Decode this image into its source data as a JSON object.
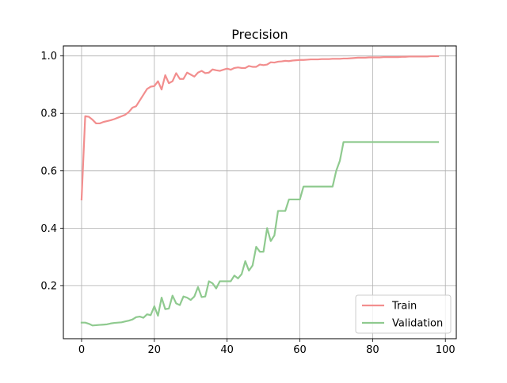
{
  "chart_data": {
    "type": "line",
    "title": "Precision",
    "xlabel": "",
    "ylabel": "",
    "xlim": [
      -5,
      103
    ],
    "ylim": [
      0.015,
      1.035
    ],
    "x_ticks": [
      0,
      20,
      40,
      60,
      80,
      100
    ],
    "y_ticks": [
      0.2,
      0.4,
      0.6,
      0.8,
      1.0
    ],
    "x_tick_labels": [
      "0",
      "20",
      "40",
      "60",
      "80",
      "100"
    ],
    "y_tick_labels": [
      "0.2",
      "0.4",
      "0.6",
      "0.8",
      "1.0"
    ],
    "grid": true,
    "legend_position": "lower-right",
    "series": [
      {
        "name": "Train",
        "color": "#f28e8e",
        "x": [
          0,
          1,
          2,
          3,
          4,
          5,
          6,
          7,
          8,
          9,
          10,
          11,
          12,
          13,
          14,
          15,
          16,
          17,
          18,
          19,
          20,
          21,
          22,
          23,
          24,
          25,
          26,
          27,
          28,
          29,
          30,
          31,
          32,
          33,
          34,
          35,
          36,
          37,
          38,
          39,
          40,
          41,
          42,
          43,
          44,
          45,
          46,
          47,
          48,
          49,
          50,
          51,
          52,
          53,
          54,
          55,
          56,
          57,
          58,
          59,
          60,
          61,
          62,
          63,
          64,
          65,
          66,
          67,
          68,
          69,
          70,
          71,
          72,
          73,
          74,
          75,
          76,
          77,
          78,
          79,
          80,
          81,
          82,
          83,
          84,
          85,
          86,
          87,
          88,
          89,
          90,
          91,
          92,
          93,
          94,
          95,
          96,
          97,
          98
        ],
        "values": [
          0.5,
          0.79,
          0.788,
          0.778,
          0.765,
          0.765,
          0.77,
          0.773,
          0.776,
          0.78,
          0.785,
          0.79,
          0.795,
          0.805,
          0.82,
          0.825,
          0.845,
          0.865,
          0.885,
          0.893,
          0.895,
          0.912,
          0.883,
          0.933,
          0.905,
          0.912,
          0.94,
          0.92,
          0.92,
          0.942,
          0.935,
          0.928,
          0.942,
          0.948,
          0.94,
          0.942,
          0.953,
          0.95,
          0.948,
          0.952,
          0.956,
          0.952,
          0.958,
          0.96,
          0.958,
          0.958,
          0.965,
          0.962,
          0.962,
          0.97,
          0.968,
          0.97,
          0.978,
          0.977,
          0.98,
          0.981,
          0.983,
          0.982,
          0.984,
          0.985,
          0.986,
          0.986,
          0.987,
          0.988,
          0.988,
          0.988,
          0.989,
          0.989,
          0.989,
          0.99,
          0.99,
          0.99,
          0.991,
          0.991,
          0.992,
          0.993,
          0.994,
          0.994,
          0.994,
          0.995,
          0.995,
          0.995,
          0.995,
          0.996,
          0.996,
          0.996,
          0.996,
          0.996,
          0.997,
          0.997,
          0.998,
          0.998,
          0.998,
          0.998,
          0.998,
          0.998,
          0.999,
          0.999,
          0.999
        ]
      },
      {
        "name": "Validation",
        "color": "#8fca8f",
        "x": [
          0,
          1,
          2,
          3,
          4,
          5,
          6,
          7,
          8,
          9,
          10,
          11,
          12,
          13,
          14,
          15,
          16,
          17,
          18,
          19,
          20,
          21,
          22,
          23,
          24,
          25,
          26,
          27,
          28,
          29,
          30,
          31,
          32,
          33,
          34,
          35,
          36,
          37,
          38,
          39,
          40,
          41,
          42,
          43,
          44,
          45,
          46,
          47,
          48,
          49,
          50,
          51,
          52,
          53,
          54,
          55,
          56,
          57,
          58,
          59,
          60,
          61,
          62,
          63,
          64,
          65,
          66,
          67,
          68,
          69,
          70,
          71,
          72,
          73,
          74,
          75,
          76,
          77,
          78,
          79,
          80,
          81,
          82,
          83,
          84,
          85,
          86,
          87,
          88,
          89,
          90,
          91,
          92,
          93,
          94,
          95,
          96,
          97,
          98
        ],
        "values": [
          0.071,
          0.071,
          0.067,
          0.061,
          0.062,
          0.063,
          0.064,
          0.065,
          0.068,
          0.07,
          0.071,
          0.072,
          0.075,
          0.078,
          0.082,
          0.09,
          0.092,
          0.088,
          0.1,
          0.097,
          0.128,
          0.095,
          0.158,
          0.118,
          0.12,
          0.165,
          0.138,
          0.132,
          0.162,
          0.158,
          0.15,
          0.162,
          0.195,
          0.16,
          0.162,
          0.215,
          0.208,
          0.19,
          0.215,
          0.215,
          0.215,
          0.215,
          0.235,
          0.225,
          0.24,
          0.285,
          0.252,
          0.27,
          0.335,
          0.318,
          0.318,
          0.4,
          0.355,
          0.375,
          0.46,
          0.46,
          0.46,
          0.5,
          0.5,
          0.5,
          0.5,
          0.545,
          0.545,
          0.545,
          0.545,
          0.545,
          0.545,
          0.545,
          0.545,
          0.545,
          0.6,
          0.635,
          0.7,
          0.7,
          0.7,
          0.7,
          0.7,
          0.7,
          0.7,
          0.7,
          0.7,
          0.7,
          0.7,
          0.7,
          0.7,
          0.7,
          0.7,
          0.7,
          0.7,
          0.7,
          0.7,
          0.7,
          0.7,
          0.7,
          0.7,
          0.7,
          0.7,
          0.7,
          0.7
        ]
      }
    ]
  }
}
